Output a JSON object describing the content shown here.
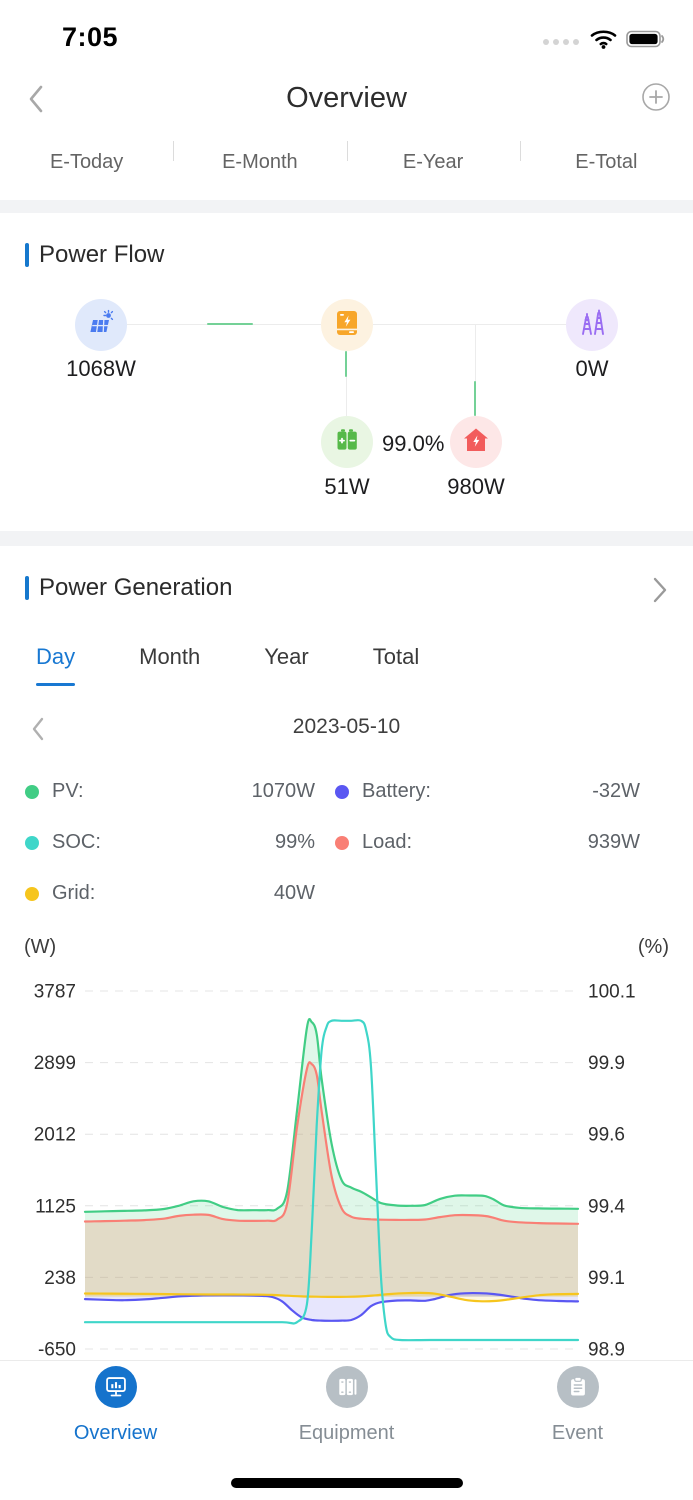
{
  "status_bar": {
    "time": "7:05"
  },
  "header": {
    "title": "Overview"
  },
  "energy_tabs": {
    "items": [
      "E-Today",
      "E-Month",
      "E-Year",
      "E-Total"
    ]
  },
  "power_flow": {
    "title": "Power Flow",
    "pv_value": "1068W",
    "grid_value": "0W",
    "battery_value": "51W",
    "battery_soc": "99.0%",
    "load_value": "980W"
  },
  "power_generation": {
    "title": "Power Generation",
    "tabs": [
      "Day",
      "Month",
      "Year",
      "Total"
    ],
    "active_tab": "Day",
    "date": "2023-05-10",
    "legend": [
      {
        "label": "PV:",
        "value": "1070W",
        "color": "#41cd85"
      },
      {
        "label": "Battery:",
        "value": "-32W",
        "color": "#5a57f2"
      },
      {
        "label": "SOC:",
        "value": "99%",
        "color": "#3fd6c9"
      },
      {
        "label": "Load:",
        "value": "939W",
        "color": "#f97f75"
      },
      {
        "label": "Grid:",
        "value": "40W",
        "color": "#f6c51d"
      }
    ],
    "left_unit": "(W)",
    "right_unit": "(%)"
  },
  "chart_data": {
    "type": "line",
    "title": "Power Generation - Day (2023-05-10)",
    "x_labels_visible": false,
    "x_range_pct": [
      0,
      100
    ],
    "grid": "dashed horizontal",
    "left_axis": {
      "unit": "(W)",
      "min": -650,
      "max": 3787,
      "ticks": [
        "3787",
        "2899",
        "2012",
        "1125",
        "238",
        "-650"
      ]
    },
    "right_axis": {
      "unit": "(%)",
      "min": 98.9,
      "max": 100.1,
      "ticks": [
        "100.1",
        "99.9",
        "99.6",
        "99.4",
        "99.1",
        "98.9"
      ]
    },
    "series": [
      {
        "name": "PV",
        "unit": "W",
        "axis": "left",
        "color": "#41cd85",
        "fill": "rgba(94,214,146,0.20)",
        "points": [
          [
            0,
            1050
          ],
          [
            4,
            1057
          ],
          [
            8,
            1062
          ],
          [
            12,
            1068
          ],
          [
            16,
            1085
          ],
          [
            19,
            1125
          ],
          [
            22,
            1180
          ],
          [
            25,
            1180
          ],
          [
            28,
            1110
          ],
          [
            31,
            1072
          ],
          [
            34,
            1070
          ],
          [
            37,
            1072
          ],
          [
            39,
            1090
          ],
          [
            41,
            1300
          ],
          [
            43,
            2300
          ],
          [
            45,
            3330
          ],
          [
            46,
            3400
          ],
          [
            47,
            3250
          ],
          [
            48,
            2700
          ],
          [
            50,
            1900
          ],
          [
            52,
            1450
          ],
          [
            54,
            1350
          ],
          [
            56,
            1300
          ],
          [
            58,
            1230
          ],
          [
            60,
            1160
          ],
          [
            63,
            1130
          ],
          [
            66,
            1125
          ],
          [
            69,
            1135
          ],
          [
            72,
            1210
          ],
          [
            75,
            1250
          ],
          [
            78,
            1252
          ],
          [
            81,
            1248
          ],
          [
            83,
            1200
          ],
          [
            85,
            1130
          ],
          [
            88,
            1100
          ],
          [
            92,
            1092
          ],
          [
            96,
            1090
          ],
          [
            100,
            1088
          ]
        ]
      },
      {
        "name": "Load",
        "unit": "W",
        "axis": "left",
        "color": "#f97f75",
        "fill": "rgba(235,140,105,0.26)",
        "points": [
          [
            0,
            930
          ],
          [
            4,
            935
          ],
          [
            8,
            940
          ],
          [
            12,
            948
          ],
          [
            16,
            965
          ],
          [
            19,
            1000
          ],
          [
            22,
            1015
          ],
          [
            25,
            1012
          ],
          [
            28,
            960
          ],
          [
            31,
            940
          ],
          [
            34,
            938
          ],
          [
            37,
            940
          ],
          [
            39,
            955
          ],
          [
            41,
            1150
          ],
          [
            43,
            2100
          ],
          [
            45,
            2820
          ],
          [
            46,
            2880
          ],
          [
            47,
            2750
          ],
          [
            48,
            2300
          ],
          [
            50,
            1500
          ],
          [
            52,
            1100
          ],
          [
            54,
            990
          ],
          [
            56,
            965
          ],
          [
            58,
            958
          ],
          [
            60,
            952
          ],
          [
            63,
            950
          ],
          [
            66,
            950
          ],
          [
            69,
            955
          ],
          [
            72,
            985
          ],
          [
            75,
            1008
          ],
          [
            78,
            1010
          ],
          [
            81,
            1000
          ],
          [
            83,
            975
          ],
          [
            85,
            940
          ],
          [
            88,
            920
          ],
          [
            92,
            910
          ],
          [
            96,
            905
          ],
          [
            100,
            902
          ]
        ]
      },
      {
        "name": "Battery",
        "unit": "W",
        "axis": "left",
        "color": "#5a57f2",
        "fill": "rgba(105,99,242,0.16)",
        "points": [
          [
            0,
            -32
          ],
          [
            4,
            -40
          ],
          [
            8,
            -45
          ],
          [
            12,
            -35
          ],
          [
            16,
            -15
          ],
          [
            20,
            5
          ],
          [
            24,
            14
          ],
          [
            28,
            16
          ],
          [
            32,
            14
          ],
          [
            36,
            8
          ],
          [
            38,
            -5
          ],
          [
            40,
            -60
          ],
          [
            42,
            -170
          ],
          [
            44,
            -260
          ],
          [
            46,
            -290
          ],
          [
            48,
            -298
          ],
          [
            50,
            -300
          ],
          [
            52,
            -298
          ],
          [
            54,
            -290
          ],
          [
            56,
            -230
          ],
          [
            58,
            -120
          ],
          [
            60,
            -70
          ],
          [
            63,
            -50
          ],
          [
            66,
            -48
          ],
          [
            69,
            -52
          ],
          [
            71,
            -30
          ],
          [
            74,
            20
          ],
          [
            77,
            40
          ],
          [
            80,
            42
          ],
          [
            83,
            30
          ],
          [
            86,
            5
          ],
          [
            89,
            -25
          ],
          [
            92,
            -45
          ],
          [
            96,
            -55
          ],
          [
            100,
            -60
          ]
        ]
      },
      {
        "name": "Grid",
        "unit": "W",
        "axis": "left",
        "color": "#f6c51d",
        "fill": "rgba(246,197,29,0.14)",
        "points": [
          [
            0,
            38
          ],
          [
            5,
            36
          ],
          [
            10,
            34
          ],
          [
            15,
            32
          ],
          [
            20,
            28
          ],
          [
            25,
            26
          ],
          [
            30,
            25
          ],
          [
            35,
            24
          ],
          [
            38,
            20
          ],
          [
            41,
            10
          ],
          [
            44,
            2
          ],
          [
            47,
            -2
          ],
          [
            50,
            -4
          ],
          [
            53,
            -3
          ],
          [
            56,
            2
          ],
          [
            59,
            15
          ],
          [
            62,
            32
          ],
          [
            65,
            42
          ],
          [
            68,
            45
          ],
          [
            71,
            35
          ],
          [
            74,
            0
          ],
          [
            77,
            -40
          ],
          [
            80,
            -58
          ],
          [
            83,
            -55
          ],
          [
            86,
            -35
          ],
          [
            89,
            -8
          ],
          [
            92,
            15
          ],
          [
            95,
            28
          ],
          [
            100,
            33
          ]
        ]
      },
      {
        "name": "SOC",
        "unit": "%",
        "axis": "right",
        "color": "#3fd6c9",
        "fill": "none",
        "points": [
          [
            0,
            98.99
          ],
          [
            10,
            98.99
          ],
          [
            20,
            98.99
          ],
          [
            30,
            98.99
          ],
          [
            40,
            98.99
          ],
          [
            43,
            98.99
          ],
          [
            45,
            99.05
          ],
          [
            46,
            99.3
          ],
          [
            47,
            99.65
          ],
          [
            48,
            99.9
          ],
          [
            49,
            99.98
          ],
          [
            50,
            100.0
          ],
          [
            52,
            100.0
          ],
          [
            54,
            100.0
          ],
          [
            56,
            100.0
          ],
          [
            57,
            99.97
          ],
          [
            58,
            99.85
          ],
          [
            59,
            99.5
          ],
          [
            60,
            99.15
          ],
          [
            61,
            98.98
          ],
          [
            62,
            98.94
          ],
          [
            64,
            98.93
          ],
          [
            70,
            98.93
          ],
          [
            80,
            98.93
          ],
          [
            90,
            98.93
          ],
          [
            100,
            98.93
          ]
        ]
      }
    ]
  },
  "bottom_nav": {
    "items": [
      {
        "label": "Overview",
        "active": true
      },
      {
        "label": "Equipment",
        "active": false
      },
      {
        "label": "Event",
        "active": false
      }
    ]
  },
  "colors": {
    "accent_blue": "#1678cd"
  }
}
